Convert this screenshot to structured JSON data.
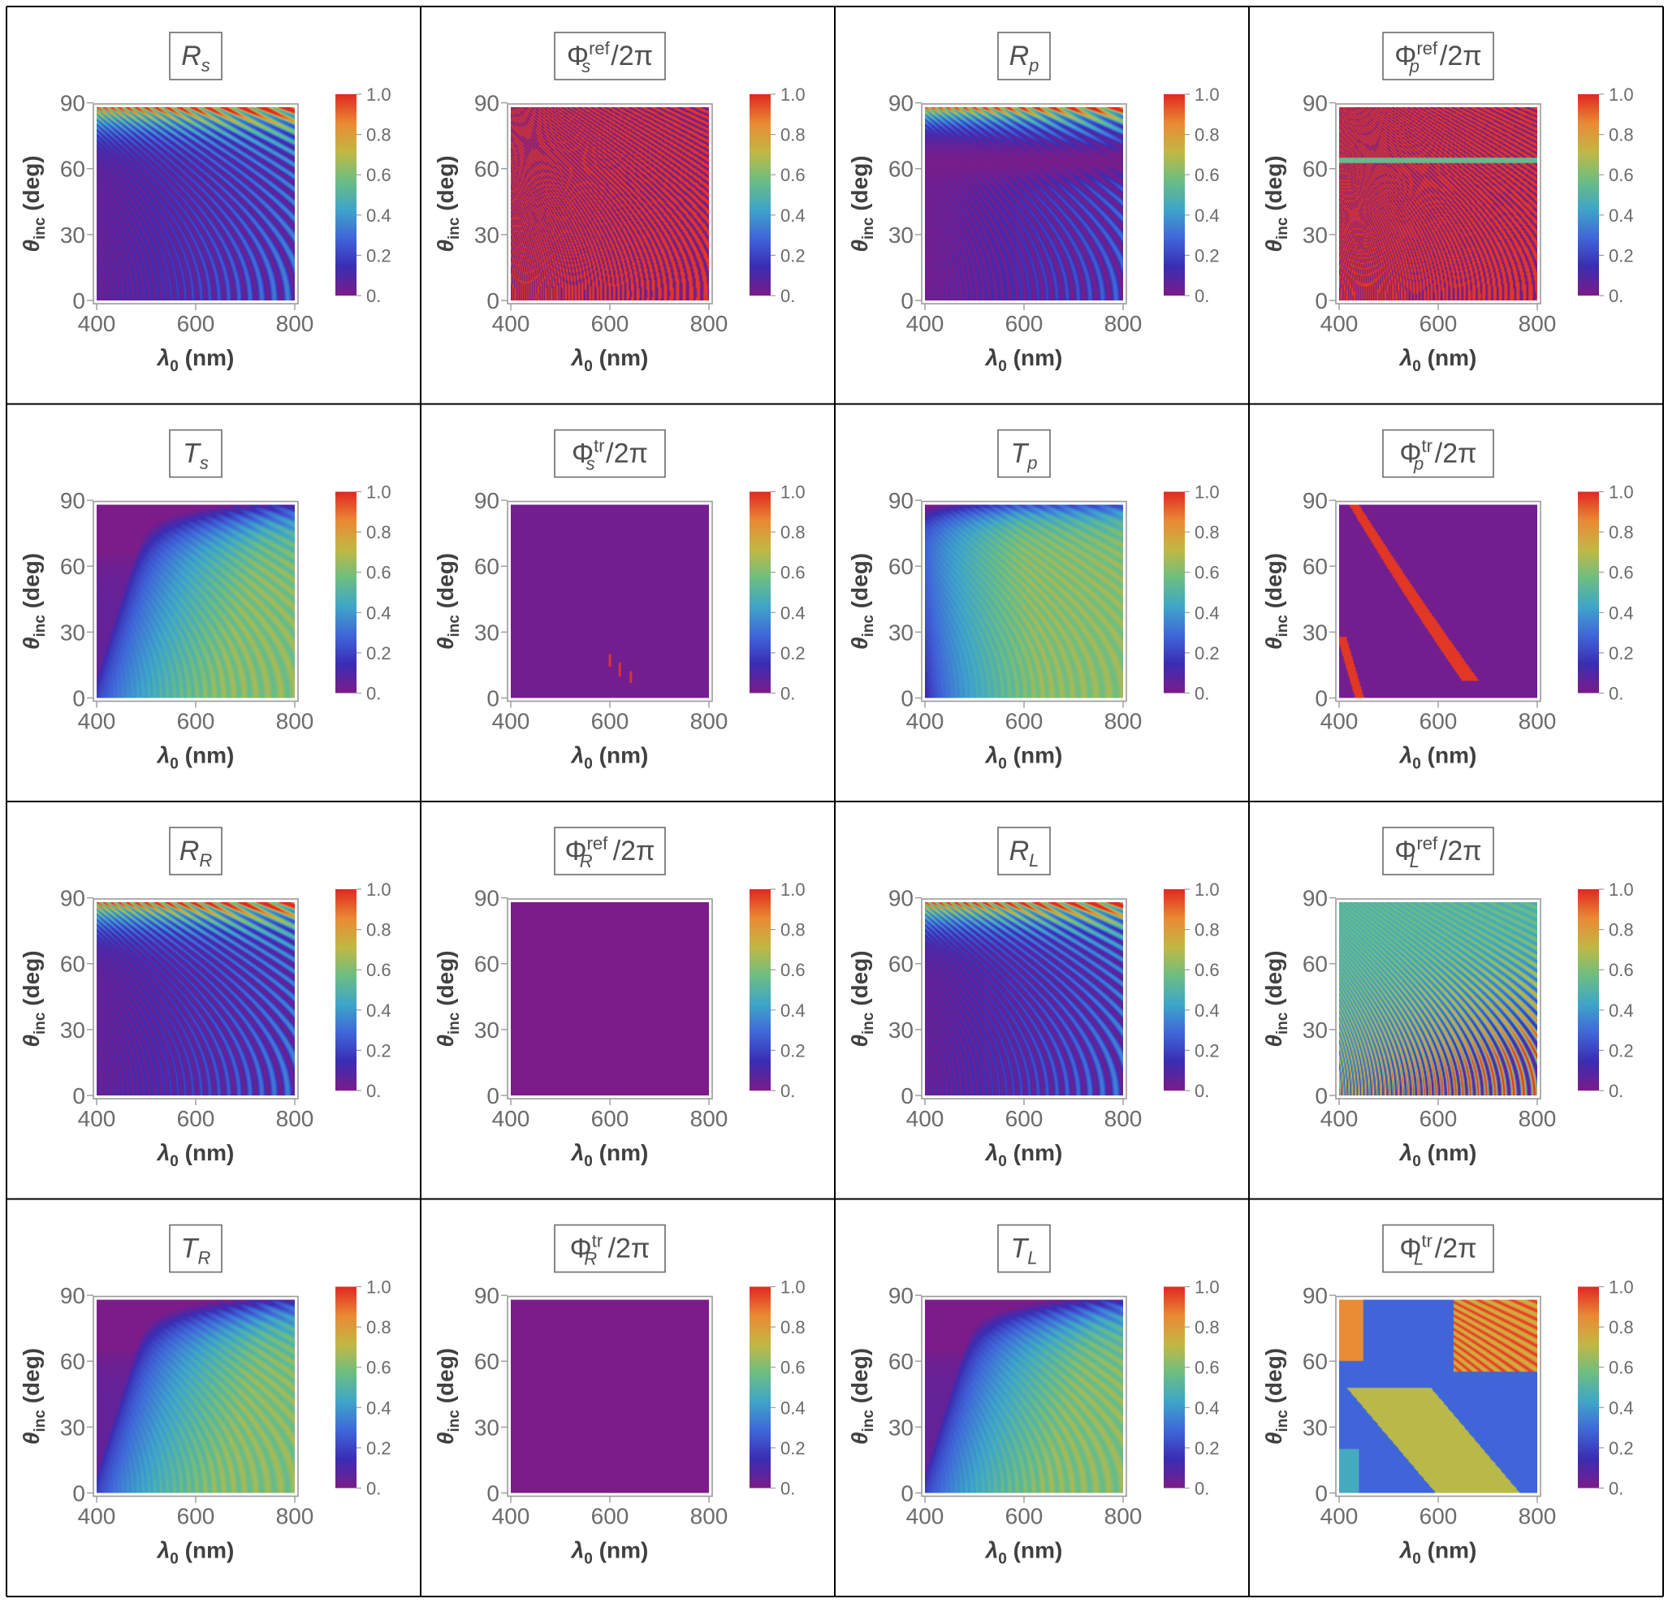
{
  "figure": {
    "rows": 4,
    "cols": 4,
    "colors": {
      "grid_line": "#000000",
      "tick_text": "#6b6b6b",
      "axis_label": "#404040",
      "title_text": "#505050",
      "title_border": "#6b6b6b",
      "frame": "#9a9a9a",
      "background": "#ffffff"
    },
    "colorbar": {
      "ticks": [
        "0.",
        "0.2",
        "0.4",
        "0.6",
        "0.8",
        "1.0"
      ],
      "tick_values": [
        0,
        0.2,
        0.4,
        0.6,
        0.8,
        1.0
      ],
      "range": [
        0,
        1
      ],
      "gradient": [
        "#7b1c89",
        "#3a2db4",
        "#3f67d9",
        "#3ea6c9",
        "#6dbe82",
        "#c2b843",
        "#eb8a34",
        "#e02a22"
      ]
    },
    "axes": {
      "xlabel": "λ",
      "xlabel_sub": "0",
      "xlabel_unit": "(nm)",
      "ylabel": "θ",
      "ylabel_sub": "inc",
      "ylabel_unit": "(deg)",
      "xlim": [
        400,
        800
      ],
      "ylim": [
        0,
        88
      ],
      "xticks": [
        "400",
        "600",
        "800"
      ],
      "xtick_values": [
        400,
        600,
        800
      ],
      "yticks": [
        "0",
        "30",
        "60",
        "90"
      ],
      "ytick_values": [
        0,
        30,
        60,
        90
      ]
    },
    "suffix": "/2π",
    "panels": [
      {
        "id": "Rs",
        "base": "R",
        "sub": "s",
        "sup": "",
        "suffix": false,
        "pattern": "R"
      },
      {
        "id": "Phi_ref_s",
        "base": "Φ",
        "sub": "s",
        "sup": "ref",
        "suffix": true,
        "pattern": "phi_ref_s"
      },
      {
        "id": "Rp",
        "base": "R",
        "sub": "p",
        "sup": "",
        "suffix": false,
        "pattern": "Rp"
      },
      {
        "id": "Phi_ref_p",
        "base": "Φ",
        "sub": "p",
        "sup": "ref",
        "suffix": true,
        "pattern": "phi_ref_p"
      },
      {
        "id": "Ts",
        "base": "T",
        "sub": "s",
        "sup": "",
        "suffix": false,
        "pattern": "T"
      },
      {
        "id": "Phi_tr_s",
        "base": "Φ",
        "sub": "s",
        "sup": "tr",
        "suffix": true,
        "pattern": "phi_tr_s"
      },
      {
        "id": "Tp",
        "base": "T",
        "sub": "p",
        "sup": "",
        "suffix": false,
        "pattern": "Tp"
      },
      {
        "id": "Phi_tr_p",
        "base": "Φ",
        "sub": "p",
        "sup": "tr",
        "suffix": true,
        "pattern": "phi_tr_p"
      },
      {
        "id": "RR",
        "base": "R",
        "sub": "R",
        "sup": "",
        "suffix": false,
        "pattern": "R"
      },
      {
        "id": "Phi_ref_R",
        "base": "Φ",
        "sub": "R",
        "sup": "ref",
        "suffix": true,
        "pattern": "zero"
      },
      {
        "id": "RL",
        "base": "R",
        "sub": "L",
        "sup": "",
        "suffix": false,
        "pattern": "R"
      },
      {
        "id": "Phi_ref_L",
        "base": "Φ",
        "sub": "L",
        "sup": "ref",
        "suffix": true,
        "pattern": "phi_ref_L"
      },
      {
        "id": "TR",
        "base": "T",
        "sub": "R",
        "sup": "",
        "suffix": false,
        "pattern": "T"
      },
      {
        "id": "Phi_tr_R",
        "base": "Φ",
        "sub": "R",
        "sup": "tr",
        "suffix": true,
        "pattern": "zero"
      },
      {
        "id": "TL",
        "base": "T",
        "sub": "L",
        "sup": "",
        "suffix": false,
        "pattern": "T"
      },
      {
        "id": "Phi_tr_L",
        "base": "Φ",
        "sub": "L",
        "sup": "tr",
        "suffix": true,
        "pattern": "phi_tr_L"
      }
    ]
  },
  "chart_data": [
    {
      "type": "heatmap",
      "title": "R_s",
      "xlabel": "λ0 (nm)",
      "ylabel": "θinc (deg)",
      "xlim": [
        400,
        800
      ],
      "ylim": [
        0,
        88
      ],
      "zlim": [
        0,
        1
      ],
      "description_values": {
        "low_angle_mean": 0.15,
        "grazing_max": 1.0
      }
    },
    {
      "type": "heatmap",
      "title": "Φ_s^ref/2π",
      "xlabel": "λ0 (nm)",
      "ylabel": "θinc (deg)",
      "xlim": [
        400,
        800
      ],
      "ylim": [
        0,
        88
      ],
      "zlim": [
        0,
        1
      ]
    },
    {
      "type": "heatmap",
      "title": "R_p",
      "xlabel": "λ0 (nm)",
      "ylabel": "θinc (deg)",
      "xlim": [
        400,
        800
      ],
      "ylim": [
        0,
        88
      ],
      "zlim": [
        0,
        1
      ]
    },
    {
      "type": "heatmap",
      "title": "Φ_p^ref/2π",
      "xlabel": "λ0 (nm)",
      "ylabel": "θinc (deg)",
      "xlim": [
        400,
        800
      ],
      "ylim": [
        0,
        88
      ],
      "zlim": [
        0,
        1
      ]
    },
    {
      "type": "heatmap",
      "title": "T_s",
      "xlabel": "λ0 (nm)",
      "ylabel": "θinc (deg)",
      "xlim": [
        400,
        800
      ],
      "ylim": [
        0,
        88
      ],
      "zlim": [
        0,
        1
      ]
    },
    {
      "type": "heatmap",
      "title": "Φ_s^tr/2π",
      "xlabel": "λ0 (nm)",
      "ylabel": "θinc (deg)",
      "xlim": [
        400,
        800
      ],
      "ylim": [
        0,
        88
      ],
      "zlim": [
        0,
        1
      ]
    },
    {
      "type": "heatmap",
      "title": "T_p",
      "xlabel": "λ0 (nm)",
      "ylabel": "θinc (deg)",
      "xlim": [
        400,
        800
      ],
      "ylim": [
        0,
        88
      ],
      "zlim": [
        0,
        1
      ]
    },
    {
      "type": "heatmap",
      "title": "Φ_p^tr/2π",
      "xlabel": "λ0 (nm)",
      "ylabel": "θinc (deg)",
      "xlim": [
        400,
        800
      ],
      "ylim": [
        0,
        88
      ],
      "zlim": [
        0,
        1
      ]
    },
    {
      "type": "heatmap",
      "title": "R_R",
      "xlabel": "λ0 (nm)",
      "ylabel": "θinc (deg)",
      "xlim": [
        400,
        800
      ],
      "ylim": [
        0,
        88
      ],
      "zlim": [
        0,
        1
      ]
    },
    {
      "type": "heatmap",
      "title": "Φ_R^ref/2π",
      "xlabel": "λ0 (nm)",
      "ylabel": "θinc (deg)",
      "xlim": [
        400,
        800
      ],
      "ylim": [
        0,
        88
      ],
      "zlim": [
        0,
        1
      ]
    },
    {
      "type": "heatmap",
      "title": "R_L",
      "xlabel": "λ0 (nm)",
      "ylabel": "θinc (deg)",
      "xlim": [
        400,
        800
      ],
      "ylim": [
        0,
        88
      ],
      "zlim": [
        0,
        1
      ]
    },
    {
      "type": "heatmap",
      "title": "Φ_L^ref/2π",
      "xlabel": "λ0 (nm)",
      "ylabel": "θinc (deg)",
      "xlim": [
        400,
        800
      ],
      "ylim": [
        0,
        88
      ],
      "zlim": [
        0,
        1
      ]
    },
    {
      "type": "heatmap",
      "title": "T_R",
      "xlabel": "λ0 (nm)",
      "ylabel": "θinc (deg)",
      "xlim": [
        400,
        800
      ],
      "ylim": [
        0,
        88
      ],
      "zlim": [
        0,
        1
      ]
    },
    {
      "type": "heatmap",
      "title": "Φ_R^tr/2π",
      "xlabel": "λ0 (nm)",
      "ylabel": "θinc (deg)",
      "xlim": [
        400,
        800
      ],
      "ylim": [
        0,
        88
      ],
      "zlim": [
        0,
        1
      ]
    },
    {
      "type": "heatmap",
      "title": "T_L",
      "xlabel": "λ0 (nm)",
      "ylabel": "θinc (deg)",
      "xlim": [
        400,
        800
      ],
      "ylim": [
        0,
        88
      ],
      "zlim": [
        0,
        1
      ]
    },
    {
      "type": "heatmap",
      "title": "Φ_L^tr/2π",
      "xlabel": "λ0 (nm)",
      "ylabel": "θinc (deg)",
      "xlim": [
        400,
        800
      ],
      "ylim": [
        0,
        88
      ],
      "zlim": [
        0,
        1
      ]
    }
  ]
}
